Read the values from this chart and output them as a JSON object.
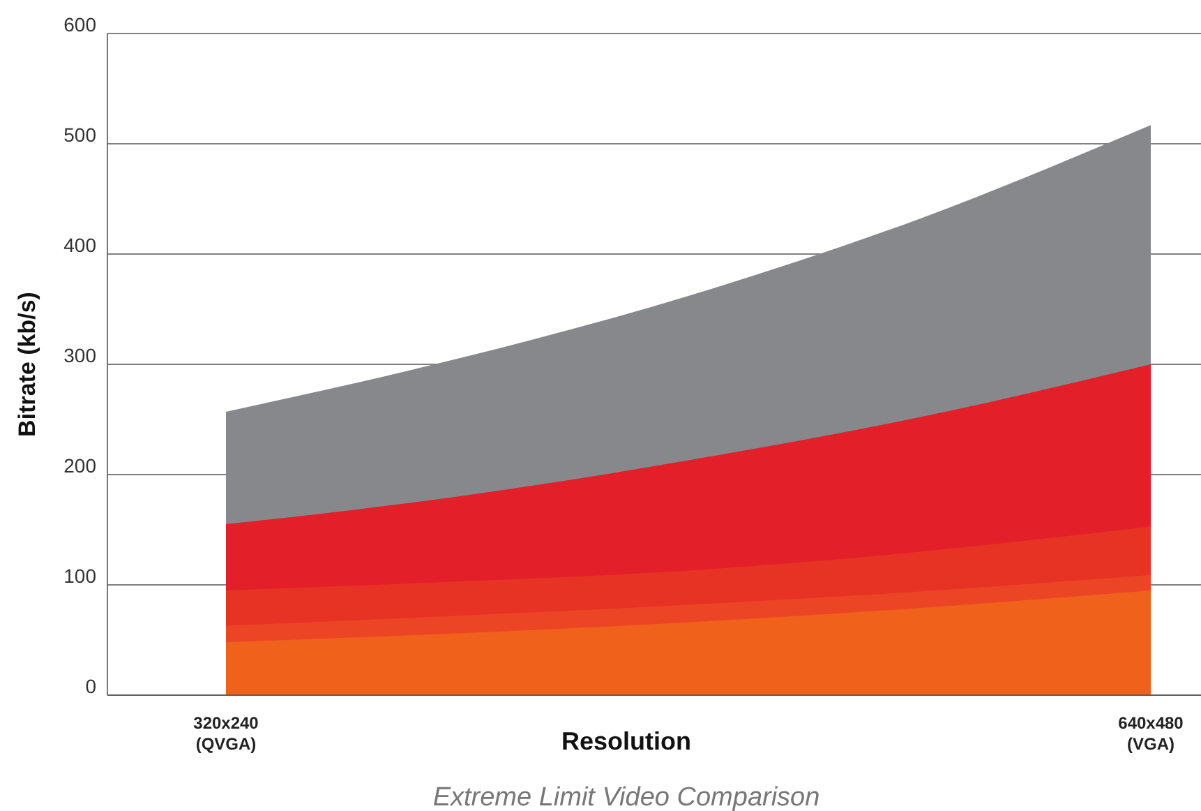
{
  "chart_data": {
    "type": "area",
    "title": "Extreme Limit Video Comparison",
    "xlabel": "Resolution",
    "ylabel": "Bitrate (kb/s)",
    "categories": [
      "320x240\n(QVGA)",
      null,
      null,
      null,
      "640x480\n(VGA)"
    ],
    "series": [
      {
        "color": "#86888c",
        "values": [
          257,
          305,
          362,
          432,
          517
        ]
      },
      {
        "color": "#e3202a",
        "values": [
          155,
          180,
          213,
          252,
          300
        ]
      },
      {
        "color": "#e63323",
        "values": [
          95,
          103,
          113,
          130,
          153
        ]
      },
      {
        "color": "#ec4526",
        "values": [
          63,
          72,
          82,
          94,
          109
        ]
      },
      {
        "color": "#f0621c",
        "values": [
          48,
          56,
          66,
          79,
          95
        ]
      }
    ],
    "ylim": [
      0,
      600
    ],
    "yticks": [
      0,
      100,
      200,
      300,
      400,
      500,
      600
    ],
    "grid": "y"
  }
}
